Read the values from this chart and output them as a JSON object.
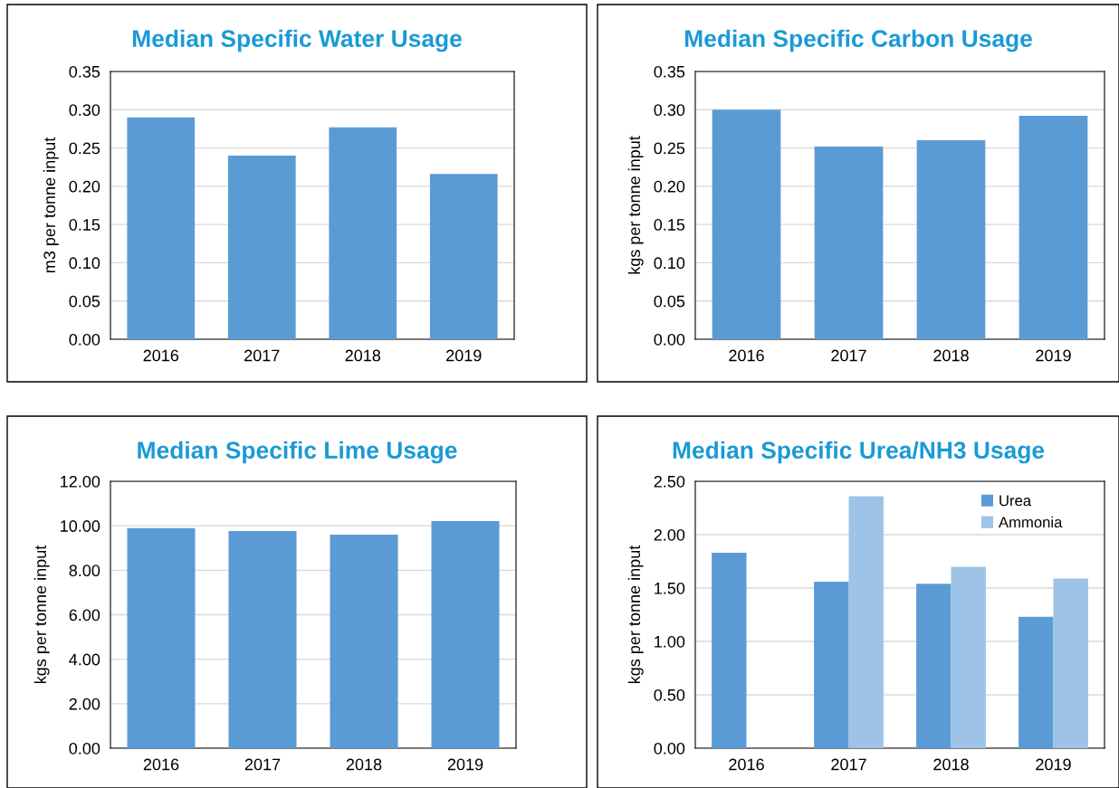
{
  "chart_data": [
    {
      "type": "bar",
      "title": "Median Specific Water Usage",
      "ylabel": "m3 per tonne input",
      "categories": [
        "2016",
        "2017",
        "2018",
        "2019"
      ],
      "series": [
        {
          "color": "#5b9bd5",
          "values": [
            0.29,
            0.24,
            0.277,
            0.216
          ]
        }
      ],
      "ylim": [
        0,
        0.35
      ],
      "yticks": [
        {
          "value": 0,
          "label": "0.00"
        },
        {
          "value": 0.05,
          "label": "0.05"
        },
        {
          "value": 0.1,
          "label": "0.10"
        },
        {
          "value": 0.15,
          "label": "0.15"
        },
        {
          "value": 0.2,
          "label": "0.20"
        },
        {
          "value": 0.25,
          "label": "0.25"
        },
        {
          "value": 0.3,
          "label": "0.30"
        },
        {
          "value": 0.35,
          "label": "0.35"
        }
      ],
      "grid": "y",
      "legend": false
    },
    {
      "type": "bar",
      "title": "Median Specific Carbon Usage",
      "ylabel": "kgs per tonne input",
      "categories": [
        "2016",
        "2017",
        "2018",
        "2019"
      ],
      "series": [
        {
          "color": "#5b9bd5",
          "values": [
            0.3,
            0.252,
            0.26,
            0.292
          ]
        }
      ],
      "ylim": [
        0,
        0.35
      ],
      "yticks": [
        {
          "value": 0,
          "label": "0.00"
        },
        {
          "value": 0.05,
          "label": "0.05"
        },
        {
          "value": 0.1,
          "label": "0.10"
        },
        {
          "value": 0.15,
          "label": "0.15"
        },
        {
          "value": 0.2,
          "label": "0.20"
        },
        {
          "value": 0.25,
          "label": "0.25"
        },
        {
          "value": 0.3,
          "label": "0.30"
        },
        {
          "value": 0.35,
          "label": "0.35"
        }
      ],
      "grid": "y",
      "legend": false
    },
    {
      "type": "bar",
      "title": "Median Specific Lime Usage",
      "ylabel": "kgs per tonne input",
      "categories": [
        "2016",
        "2017",
        "2018",
        "2019"
      ],
      "series": [
        {
          "color": "#5b9bd5",
          "values": [
            9.89,
            9.76,
            9.6,
            10.21
          ]
        }
      ],
      "ylim": [
        0,
        12
      ],
      "yticks": [
        {
          "value": 0,
          "label": "0.00"
        },
        {
          "value": 2,
          "label": "2.00"
        },
        {
          "value": 4,
          "label": "4.00"
        },
        {
          "value": 6,
          "label": "6.00"
        },
        {
          "value": 8,
          "label": "8.00"
        },
        {
          "value": 10,
          "label": "10.00"
        },
        {
          "value": 12,
          "label": "12.00"
        }
      ],
      "grid": "y",
      "legend": false
    },
    {
      "type": "bar",
      "title": "Median Specific Urea/NH3 Usage",
      "ylabel": "kgs per tonne input",
      "categories": [
        "2016",
        "2017",
        "2018",
        "2019"
      ],
      "series": [
        {
          "name": "Urea",
          "color": "#5b9bd5",
          "values": [
            1.83,
            1.56,
            1.54,
            1.23
          ]
        },
        {
          "name": "Ammonia",
          "color": "#9dc3e6",
          "values": [
            null,
            2.36,
            1.7,
            1.59
          ]
        }
      ],
      "ylim": [
        0,
        2.5
      ],
      "yticks": [
        {
          "value": 0,
          "label": "0.00"
        },
        {
          "value": 0.5,
          "label": "0.50"
        },
        {
          "value": 1,
          "label": "1.00"
        },
        {
          "value": 1.5,
          "label": "1.50"
        },
        {
          "value": 2,
          "label": "2.00"
        },
        {
          "value": 2.5,
          "label": "2.50"
        }
      ],
      "grid": "y",
      "legend": "top right"
    }
  ]
}
